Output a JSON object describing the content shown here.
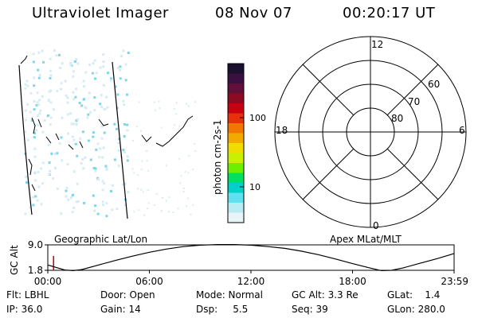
{
  "header": {
    "instrument": "Ultraviolet Imager",
    "date": "08 Nov 07",
    "time": "00:20:17 UT"
  },
  "colorbar": {
    "unit_label": "photon cm-2s-1",
    "ticks": [
      "100",
      "10"
    ],
    "colors": [
      "#1a1030",
      "#3a1040",
      "#60103a",
      "#8c0a22",
      "#c80010",
      "#e8300a",
      "#f07800",
      "#f2aa00",
      "#f0dc00",
      "#c8f000",
      "#6cf000",
      "#00e060",
      "#00d0c8",
      "#60e0f0",
      "#b8ecf4",
      "#e8f4f8"
    ]
  },
  "polar": {
    "mlt_labels": [
      "12",
      "6",
      "0",
      "18"
    ],
    "lat_labels": [
      "60",
      "70",
      "80"
    ]
  },
  "labels": {
    "geo": "Geographic Lat/Lon",
    "apex": "Apex MLat/MLT",
    "y_axis": "GC Alt"
  },
  "chart_data": {
    "type": "line",
    "title": "",
    "xlabel": "",
    "ylabel": "GC Alt",
    "x_ticks": [
      "00:00",
      "06:00",
      "12:00",
      "18:00",
      "23:59"
    ],
    "y_ticks": [
      "9.0",
      "1.8"
    ],
    "ylim": [
      1.8,
      9.0
    ],
    "xlim_hours": [
      0,
      24
    ],
    "series": [
      {
        "values_x_hours": [
          0,
          0.5,
          1.0,
          1.5,
          2.0,
          3.0,
          4.0,
          5.0,
          6.0,
          7.0,
          8.0,
          9.0,
          10.0,
          11.0,
          12.0,
          13.0,
          14.0,
          15.0,
          16.0,
          17.0,
          18.0,
          19.0,
          19.7,
          20.3,
          21.0,
          22.0,
          23.0,
          23.98
        ],
        "values_y": [
          3.3,
          2.6,
          1.9,
          1.7,
          2.0,
          3.3,
          4.6,
          5.8,
          6.9,
          7.8,
          8.5,
          8.9,
          9.1,
          9.1,
          8.9,
          8.5,
          8.0,
          7.2,
          6.2,
          5.0,
          3.7,
          2.5,
          1.7,
          1.8,
          2.5,
          3.8,
          5.1,
          6.5
        ]
      }
    ],
    "current_hour": 0.34
  },
  "status": {
    "flt": "Flt: LBHL",
    "door": "Door: Open",
    "mode": "Mode: Normal",
    "gcalt": "GC Alt: 3.3 Re",
    "glat": "GLat:    1.4",
    "ip": "IP: 36.0",
    "gain": "Gain: 14",
    "dsp": "Dsp:     5.5",
    "seq": "Seq: 39",
    "glon": "GLon: 280.0"
  }
}
